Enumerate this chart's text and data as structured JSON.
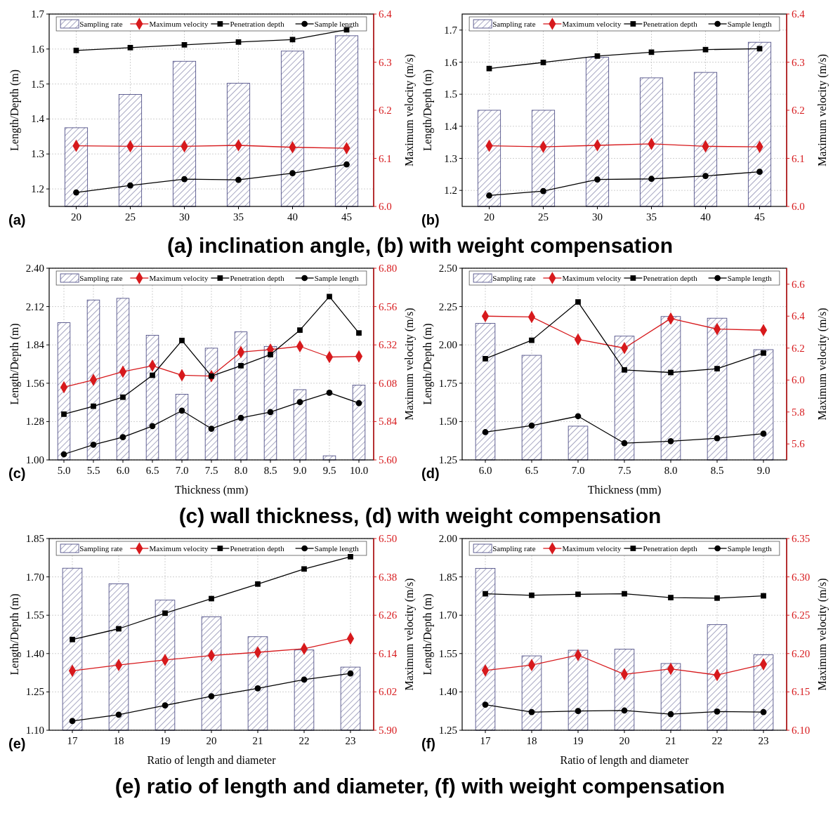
{
  "chart_data": [
    {
      "type": "bar",
      "title": "(a)",
      "ylabel": "Length/Depth (m)",
      "y2label": "Maximum velocity (m/s)",
      "annotations": [
        "(a) inclination angle, (b) with weight compensation"
      ],
      "categories": [
        "20",
        "25",
        "30",
        "35",
        "40",
        "45"
      ],
      "ylim": [
        1.15,
        1.7
      ],
      "yticks": [
        1.2,
        1.3,
        1.4,
        1.5,
        1.6,
        1.7
      ],
      "y2lim": [
        6.0,
        6.4
      ],
      "y2ticks": [
        {
          "value": 6.0,
          "label": "6.0"
        },
        6.1,
        6.2,
        6.3,
        6.4
      ],
      "grid": true,
      "legend": "top",
      "series": [
        {
          "name": "Sampling rate",
          "color": "#3d3d7a",
          "values": [
            1.375,
            1.47,
            1.565,
            1.502,
            1.594,
            1.638
          ]
        },
        {
          "name": "Maximum velocity",
          "type": "line",
          "axis": "y2",
          "marker": "diamond",
          "color": "#d7191c",
          "values": [
            6.126,
            6.125,
            6.125,
            6.127,
            6.123,
            6.121
          ]
        },
        {
          "name": "Penetration depth",
          "type": "line",
          "marker": "square",
          "color": "#000000",
          "values": [
            1.596,
            1.604,
            1.612,
            1.62,
            1.627,
            1.655
          ]
        },
        {
          "name": "Sample length",
          "type": "line",
          "marker": "circle",
          "color": "#000000",
          "values": [
            1.19,
            1.21,
            1.228,
            1.226,
            1.245,
            1.27
          ]
        }
      ]
    },
    {
      "type": "bar",
      "title": "(b)",
      "ylabel": "Length/Depth (m)",
      "y2label": "Maximum velocity (m/s)",
      "categories": [
        "20",
        "25",
        "30",
        "35",
        "40",
        "45"
      ],
      "ylim": [
        1.15,
        1.75
      ],
      "yticks": [
        1.2,
        1.3,
        1.4,
        1.5,
        1.6,
        1.7
      ],
      "y2lim": [
        6.0,
        6.4
      ],
      "y2ticks": [
        {
          "value": 6.0,
          "label": "6.0"
        },
        6.1,
        6.2,
        6.3,
        6.4
      ],
      "grid": true,
      "legend": "top",
      "series": [
        {
          "name": "Sampling rate",
          "color": "#3d3d7a",
          "values": [
            1.45,
            1.45,
            1.615,
            1.551,
            1.568,
            1.662
          ]
        },
        {
          "name": "Maximum velocity",
          "type": "line",
          "axis": "y2",
          "marker": "diamond",
          "color": "#d7191c",
          "values": [
            6.126,
            6.124,
            6.127,
            6.13,
            6.125,
            6.124
          ]
        },
        {
          "name": "Penetration depth",
          "type": "line",
          "marker": "square",
          "color": "#000000",
          "values": [
            1.58,
            1.599,
            1.619,
            1.631,
            1.639,
            1.642
          ]
        },
        {
          "name": "Sample length",
          "type": "line",
          "marker": "circle",
          "color": "#000000",
          "values": [
            1.184,
            1.198,
            1.234,
            1.236,
            1.245,
            1.258
          ]
        }
      ]
    },
    {
      "type": "bar",
      "title": "(c)",
      "xlabel": "Thickness (mm)",
      "ylabel": "Length/Depth (m)",
      "y2label": "Maximum velocity (m/s)",
      "annotations": [
        "(c) wall thickness, (d) with weight compensation"
      ],
      "categories": [
        "5.0",
        "5.5",
        "6.0",
        "6.5",
        "7.0",
        "7.5",
        "8.0",
        "8.5",
        "9.0",
        "9.5",
        "10.0"
      ],
      "ylim": [
        1.0,
        2.4
      ],
      "yticks": [
        {
          "value": 1.0,
          "label": "1.00"
        },
        1.28,
        1.56,
        1.84,
        2.12,
        {
          "value": 2.4,
          "label": "2.40"
        }
      ],
      "y2lim": [
        5.6,
        6.8
      ],
      "y2ticks": [
        {
          "value": 5.6,
          "label": "5.60"
        },
        5.84,
        6.08,
        6.32,
        6.56,
        {
          "value": 6.8,
          "label": "6.80"
        }
      ],
      "grid": true,
      "legend": "top",
      "series": [
        {
          "name": "Sampling rate",
          "color": "#3d3d7a",
          "values": [
            2.002,
            2.168,
            2.18,
            1.91,
            1.479,
            1.816,
            1.935,
            1.829,
            1.513,
            1.03,
            1.546
          ]
        },
        {
          "name": "Maximum velocity",
          "type": "line",
          "axis": "y2",
          "marker": "diamond",
          "color": "#d7191c",
          "values": [
            6.055,
            6.101,
            6.152,
            6.19,
            6.13,
            6.125,
            6.275,
            6.291,
            6.311,
            6.244,
            6.248
          ]
        },
        {
          "name": "Penetration depth",
          "type": "line",
          "marker": "square",
          "color": "#000000",
          "values": [
            1.334,
            1.392,
            1.458,
            1.618,
            1.872,
            1.612,
            1.688,
            1.769,
            1.948,
            2.193,
            1.927
          ]
        },
        {
          "name": "Sample length",
          "type": "line",
          "marker": "circle",
          "color": "#000000",
          "values": [
            1.041,
            1.111,
            1.166,
            1.247,
            1.36,
            1.228,
            1.307,
            1.349,
            1.422,
            1.49,
            1.415
          ]
        }
      ]
    },
    {
      "type": "bar",
      "title": "(d)",
      "xlabel": "Thickness (mm)",
      "ylabel": "Length/Depth (m)",
      "y2label": "Maximum velocity (m/s)",
      "categories": [
        "6.0",
        "6.5",
        "7.0",
        "7.5",
        "8.0",
        "8.5",
        "9.0"
      ],
      "ylim": [
        1.25,
        2.5
      ],
      "yticks": [
        1.25,
        {
          "value": 1.5,
          "label": "1.50"
        },
        1.75,
        {
          "value": 2.0,
          "label": "2.00"
        },
        2.25,
        {
          "value": 2.5,
          "label": "2.50"
        }
      ],
      "y2lim": [
        5.5,
        6.7
      ],
      "y2ticks": [
        5.6,
        5.8,
        {
          "value": 6.0,
          "label": "6.0"
        },
        6.2,
        6.4,
        6.6
      ],
      "grid": true,
      "legend": "top",
      "series": [
        {
          "name": "Sampling rate",
          "color": "#3d3d7a",
          "values": [
            2.14,
            1.932,
            1.47,
            2.057,
            2.185,
            2.174,
            1.969
          ]
        },
        {
          "name": "Maximum velocity",
          "type": "line",
          "axis": "y2",
          "marker": "diamond",
          "color": "#d7191c",
          "values": [
            6.4,
            6.395,
            6.254,
            6.2,
            6.385,
            6.319,
            6.312
          ]
        },
        {
          "name": "Penetration depth",
          "type": "line",
          "marker": "square",
          "color": "#000000",
          "values": [
            1.91,
            2.03,
            2.28,
            1.837,
            1.82,
            1.845,
            1.947
          ]
        },
        {
          "name": "Sample length",
          "type": "line",
          "marker": "circle",
          "color": "#000000",
          "values": [
            1.431,
            1.474,
            1.535,
            1.359,
            1.372,
            1.391,
            1.421
          ]
        }
      ]
    },
    {
      "type": "bar",
      "title": "(e)",
      "xlabel": "Ratio of length and diameter",
      "ylabel": "Length/Depth (m)",
      "y2label": "Maximum velocity (m/s)",
      "annotations": [
        "(e) ratio of length and diameter, (f) with weight compensation"
      ],
      "categories": [
        "17",
        "18",
        "19",
        "20",
        "21",
        "22",
        "23"
      ],
      "ylim": [
        1.1,
        1.85
      ],
      "yticks": [
        {
          "value": 1.1,
          "label": "1.10"
        },
        1.25,
        {
          "value": 1.4,
          "label": "1.40"
        },
        1.55,
        {
          "value": 1.7,
          "label": "1.70"
        },
        1.85
      ],
      "y2lim": [
        5.9,
        6.5
      ],
      "y2ticks": [
        {
          "value": 5.9,
          "label": "5.90"
        },
        6.02,
        6.14,
        6.26,
        6.38,
        {
          "value": 6.5,
          "label": "6.50"
        }
      ],
      "grid": true,
      "legend": "top",
      "series": [
        {
          "name": "Sampling rate",
          "color": "#3d3d7a",
          "values": [
            1.734,
            1.673,
            1.609,
            1.544,
            1.466,
            1.414,
            1.347
          ]
        },
        {
          "name": "Maximum velocity",
          "type": "line",
          "axis": "y2",
          "marker": "diamond",
          "color": "#d7191c",
          "values": [
            6.086,
            6.104,
            6.12,
            6.134,
            6.144,
            6.155,
            6.187
          ]
        },
        {
          "name": "Penetration depth",
          "type": "line",
          "marker": "square",
          "color": "#000000",
          "values": [
            1.455,
            1.497,
            1.558,
            1.615,
            1.672,
            1.731,
            1.779
          ]
        },
        {
          "name": "Sample length",
          "type": "line",
          "marker": "circle",
          "color": "#000000",
          "values": [
            1.136,
            1.161,
            1.197,
            1.233,
            1.264,
            1.298,
            1.322
          ]
        }
      ]
    },
    {
      "type": "bar",
      "title": "(f)",
      "xlabel": "Ratio of length and diameter",
      "ylabel": "Length/Depth (m)",
      "y2label": "Maximum velocity (m/s)",
      "categories": [
        "17",
        "18",
        "19",
        "20",
        "21",
        "22",
        "23"
      ],
      "ylim": [
        1.25,
        2.0
      ],
      "yticks": [
        1.25,
        {
          "value": 1.4,
          "label": "1.40"
        },
        1.55,
        {
          "value": 1.7,
          "label": "1.70"
        },
        1.85,
        {
          "value": 2.0,
          "label": "2.00"
        }
      ],
      "y2lim": [
        6.1,
        6.35
      ],
      "y2ticks": [
        {
          "value": 6.1,
          "label": "6.10"
        },
        6.15,
        {
          "value": 6.2,
          "label": "6.20"
        },
        6.25,
        {
          "value": 6.3,
          "label": "6.30"
        },
        6.35
      ],
      "grid": true,
      "legend": "top",
      "series": [
        {
          "name": "Sampling rate",
          "color": "#3d3d7a",
          "values": [
            1.883,
            1.541,
            1.563,
            1.567,
            1.511,
            1.663,
            1.545
          ]
        },
        {
          "name": "Maximum velocity",
          "type": "line",
          "axis": "y2",
          "marker": "diamond",
          "color": "#d7191c",
          "values": [
            6.178,
            6.185,
            6.198,
            6.173,
            6.18,
            6.172,
            6.186
          ]
        },
        {
          "name": "Penetration depth",
          "type": "line",
          "marker": "square",
          "color": "#000000",
          "values": [
            1.784,
            1.778,
            1.782,
            1.784,
            1.769,
            1.767,
            1.776
          ]
        },
        {
          "name": "Sample length",
          "type": "line",
          "marker": "circle",
          "color": "#000000",
          "values": [
            1.35,
            1.321,
            1.325,
            1.327,
            1.313,
            1.323,
            1.321
          ]
        }
      ]
    }
  ]
}
